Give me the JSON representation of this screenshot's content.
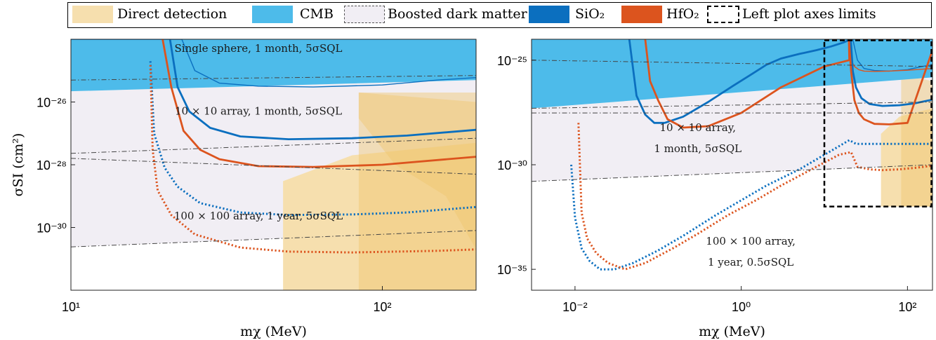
{
  "legend": {
    "items": [
      {
        "label": "Direct detection",
        "color": "#f6dfae",
        "style": "fill"
      },
      {
        "label": "CMB",
        "color": "#4dbbea",
        "style": "fill"
      },
      {
        "label": "Boosted dark matter",
        "color": "#555555",
        "style": "dashdot-box"
      },
      {
        "label": "SiO₂",
        "color": "#0b6fbf",
        "style": "fill"
      },
      {
        "label": "HfO₂",
        "color": "#dc541e",
        "style": "fill"
      },
      {
        "label": "Left plot axes limits",
        "color": "#000000",
        "style": "dashed-box"
      }
    ]
  },
  "colors": {
    "direct_detection": "#f6dfae",
    "direct_detection_dark": "#efc56f",
    "cmb": "#4dbbea",
    "boosted": "#f1eef4",
    "sio2": "#0b6fbf",
    "hfo2": "#dc541e"
  },
  "chart_data": [
    {
      "type": "line",
      "panel": "left",
      "xlabel": "mχ (MeV)",
      "ylabel": "σSI (cm²)",
      "xscale": "log",
      "yscale": "log",
      "xlim": [
        10,
        200
      ],
      "ylim": [
        1e-32,
        1e-24
      ],
      "xticks": [
        {
          "value": 10,
          "label": "10¹"
        },
        {
          "value": 100,
          "label": "10²"
        }
      ],
      "yticks": [
        {
          "value": 1e-26,
          "label": "10⁻²⁶"
        },
        {
          "value": 1e-28,
          "label": "10⁻²⁸"
        },
        {
          "value": 1e-30,
          "label": "10⁻³⁰"
        }
      ],
      "annotations": [
        {
          "text": "Single sphere, 1 month, 5σSQL",
          "x": 40,
          "y": 4e-25
        },
        {
          "text": "10 × 10 array, 1 month, 5σSQL",
          "x": 40,
          "y": 4e-27
        },
        {
          "text": "100 × 100 array, 1 year, 5σSQL",
          "x": 40,
          "y": 1.8e-30
        }
      ],
      "regions": {
        "cmb": [
          [
            10,
            2.2e-26
          ],
          [
            200,
            5e-26
          ]
        ],
        "boosted_upper": [
          [
            10,
            2.2e-26
          ],
          [
            200,
            5e-26
          ]
        ],
        "boosted_lower": [
          [
            10,
            2.4e-31
          ],
          [
            200,
            8e-31
          ]
        ],
        "direct_detection": [
          [
            [
              48,
              1e-32
            ],
            [
              48,
              3e-29
            ],
            [
              80,
              2e-28
            ],
            [
              200,
              5e-28
            ],
            [
              200,
              1e-32
            ]
          ],
          [
            [
              84,
              1e-32
            ],
            [
              84,
              2e-26
            ],
            [
              200,
              1e-26
            ],
            [
              200,
              1e-32
            ]
          ],
          [
            [
              200,
              2e-31
            ],
            [
              160,
              1e-29
            ],
            [
              110,
              1e-28
            ],
            [
              84,
              3e-27
            ],
            [
              84,
              2e-26
            ],
            [
              200,
              2e-26
            ]
          ]
        ]
      },
      "series": [
        {
          "name": "SiO₂",
          "material": "sio2",
          "style": "thin",
          "x": [
            10,
            22.7,
            25,
            30,
            40,
            60,
            100,
            150,
            200
          ],
          "y": [
            1e-24,
            1e-24,
            1e-25,
            4e-26,
            3.2e-26,
            3e-26,
            3.5e-26,
            5e-26,
            6e-26
          ]
        },
        {
          "name": "SiO₂",
          "material": "sio2",
          "style": "solid",
          "x": [
            20.8,
            22,
            24,
            28,
            35,
            50,
            80,
            120,
            200
          ],
          "y": [
            1e-24,
            3e-26,
            5e-27,
            1.5e-27,
            8e-28,
            6.5e-28,
            7e-28,
            8.5e-28,
            1.3e-27
          ]
        },
        {
          "name": "HfO₂",
          "material": "hfo2",
          "style": "solid",
          "x": [
            19.7,
            21,
            23,
            26,
            30,
            40,
            60,
            100,
            200
          ],
          "y": [
            1e-24,
            3e-26,
            1.2e-27,
            3e-28,
            1.5e-28,
            9e-29,
            8.5e-29,
            1e-28,
            1.8e-28
          ]
        },
        {
          "name": "SiO₂",
          "material": "sio2",
          "style": "dotted",
          "x": [
            18,
            18.5,
            20,
            22,
            26,
            35,
            50,
            80,
            120,
            200
          ],
          "y": [
            2e-25,
            1e-27,
            8e-29,
            2e-29,
            6e-30,
            3e-30,
            2.5e-30,
            2.6e-30,
            3e-30,
            4.5e-30
          ]
        },
        {
          "name": "HfO₂",
          "material": "hfo2",
          "style": "dotted",
          "x": [
            18,
            18.3,
            19,
            21,
            25,
            35,
            50,
            80,
            150,
            200
          ],
          "y": [
            1.5e-25,
            3e-28,
            1.5e-29,
            2.5e-30,
            6e-31,
            2.3e-31,
            1.7e-31,
            1.6e-31,
            1.8e-31,
            2e-31
          ]
        },
        {
          "name": "Boosted dark matter",
          "material": "boosted",
          "style": "dashdot",
          "x": [
            10,
            200
          ],
          "y": [
            5e-26,
            7e-26
          ]
        },
        {
          "name": "Boosted dark matter",
          "material": "boosted",
          "style": "dashdot",
          "x": [
            10,
            200
          ],
          "y": [
            2.3e-28,
            7e-28
          ]
        },
        {
          "name": "Boosted dark matter",
          "material": "boosted",
          "style": "dashdot",
          "x": [
            10,
            200
          ],
          "y": [
            1.6e-28,
            5e-29
          ]
        },
        {
          "name": "Boosted dark matter",
          "material": "boosted",
          "style": "dashdot",
          "x": [
            10,
            200
          ],
          "y": [
            2.4e-31,
            8e-31
          ]
        }
      ]
    },
    {
      "type": "line",
      "panel": "right",
      "xlabel": "mχ (MeV)",
      "ylabel": "",
      "xscale": "log",
      "yscale": "log",
      "xlim": [
        0.003,
        200
      ],
      "ylim": [
        1e-36,
        1e-24
      ],
      "xticks": [
        {
          "value": 0.01,
          "label": "10⁻²"
        },
        {
          "value": 1,
          "label": "10⁰"
        },
        {
          "value": 100,
          "label": "10²"
        }
      ],
      "yticks": [
        {
          "value": 1e-25,
          "label": "10⁻²⁵"
        },
        {
          "value": 1e-30,
          "label": "10⁻³⁰"
        },
        {
          "value": 1e-35,
          "label": "10⁻³⁵"
        }
      ],
      "annotations": [
        {
          "text": "10 × 10 array,",
          "x": 0.3,
          "y": 4e-29
        },
        {
          "text": "1 month, 5σSQL",
          "x": 0.3,
          "y": 4e-30
        },
        {
          "text": "100 × 100 array,",
          "x": 1.3,
          "y": 1.5e-34
        },
        {
          "text": "1 year, 0.5σSQL",
          "x": 1.3,
          "y": 1.5e-35
        }
      ],
      "limits_box": {
        "x": [
          10,
          200
        ],
        "y": [
          1e-32,
          1e-24
        ]
      },
      "regions": {
        "cmb": [
          [
            0.003,
            5e-28
          ],
          [
            200,
            1.5e-26
          ]
        ],
        "boosted_upper": [
          [
            0.003,
            5e-28
          ],
          [
            200,
            1.5e-26
          ]
        ],
        "boosted_lower": [
          [
            0.003,
            1.6e-31
          ],
          [
            200,
            1e-30
          ]
        ],
        "direct_detection": [
          [
            [
              48,
              1e-32
            ],
            [
              48,
              3e-29
            ],
            [
              80,
              2e-28
            ],
            [
              200,
              5e-28
            ],
            [
              200,
              1e-32
            ]
          ],
          [
            [
              84,
              1e-32
            ],
            [
              84,
              2e-26
            ],
            [
              200,
              1e-26
            ],
            [
              200,
              1e-32
            ]
          ]
        ]
      },
      "series": [
        {
          "name": "SiO₂",
          "material": "sio2",
          "style": "thin",
          "x": [
            20.5,
            22,
            25,
            30,
            40,
            60,
            100,
            150,
            200
          ],
          "y": [
            1e-24,
            1e-24,
            1e-25,
            4e-26,
            3.2e-26,
            3e-26,
            3.5e-26,
            5e-26,
            6e-26
          ]
        },
        {
          "name": "HfO₂",
          "material": "hfo2",
          "style": "thin",
          "x": [
            19.7,
            21,
            23,
            26,
            30,
            40,
            60,
            100,
            200
          ],
          "y": [
            1e-24,
            1e-25,
            5e-26,
            3.5e-26,
            3e-26,
            2.9e-26,
            3e-26,
            3.3e-26,
            4e-26
          ]
        },
        {
          "name": "SiO₂",
          "material": "sio2",
          "style": "solid",
          "x": [
            0.045,
            0.055,
            0.07,
            0.09,
            0.12,
            0.2,
            0.4,
            0.8,
            1.3,
            2,
            3,
            5,
            8,
            12,
            17,
            20.8,
            22,
            24,
            28,
            35,
            50,
            80,
            120,
            200
          ],
          "y": [
            1e-24,
            2e-27,
            2.5e-28,
            1e-28,
            1e-28,
            2e-28,
            1e-27,
            6e-27,
            2e-26,
            6e-26,
            1.2e-25,
            2e-25,
            3e-25,
            4.5e-25,
            7e-25,
            1e-24,
            3e-26,
            5e-27,
            1.5e-27,
            8e-28,
            6.5e-28,
            7e-28,
            8.5e-28,
            1.3e-27
          ]
        },
        {
          "name": "HfO₂",
          "material": "hfo2",
          "style": "solid",
          "x": [
            0.07,
            0.08,
            0.1,
            0.13,
            0.2,
            0.4,
            1,
            3,
            10,
            20,
            19.7,
            21,
            23,
            26,
            30,
            40,
            60,
            100,
            200
          ],
          "y": [
            1e-24,
            1e-26,
            1.2e-27,
            1.5e-28,
            6e-29,
            7e-29,
            3e-28,
            5e-27,
            5e-26,
            1e-25,
            1e-24,
            3e-26,
            1.2e-27,
            3e-28,
            1.5e-28,
            9e-29,
            8.5e-29,
            1e-28,
            3e-25
          ]
        },
        {
          "name": "SiO₂",
          "material": "sio2",
          "style": "dotted",
          "x": [
            0.009,
            0.01,
            0.012,
            0.015,
            0.02,
            0.03,
            0.05,
            0.1,
            0.2,
            0.5,
            1,
            2,
            5,
            10,
            20,
            24,
            28,
            35,
            50,
            80,
            120,
            200
          ],
          "y": [
            1e-30,
            3e-33,
            1e-34,
            2.5e-35,
            1e-35,
            1e-35,
            2e-35,
            8e-35,
            4e-34,
            4e-33,
            2e-32,
            1e-31,
            6e-31,
            3e-30,
            1.5e-29,
            1e-29,
            1e-29,
            1e-29,
            1e-29,
            1e-29,
            1e-29,
            1e-29
          ]
        },
        {
          "name": "HfO₂",
          "material": "hfo2",
          "style": "dotted",
          "x": [
            0.011,
            0.012,
            0.014,
            0.018,
            0.025,
            0.04,
            0.07,
            0.15,
            0.3,
            0.7,
            1.5,
            3,
            7,
            15,
            21,
            25,
            35,
            50,
            80,
            120,
            200
          ],
          "y": [
            1e-28,
            5e-33,
            3e-34,
            6e-35,
            2e-35,
            1e-35,
            2e-35,
            1e-34,
            5e-34,
            4e-33,
            2e-32,
            1e-31,
            6e-31,
            3e-30,
            4e-30,
            8e-31,
            6e-31,
            5.5e-31,
            6e-31,
            7e-31,
            9e-31
          ]
        },
        {
          "name": "Boosted dark matter",
          "material": "boosted",
          "style": "dashdot",
          "x": [
            0.003,
            200
          ],
          "y": [
            1e-25,
            5e-26
          ]
        },
        {
          "name": "Boosted dark matter",
          "material": "boosted",
          "style": "dashdot",
          "x": [
            0.003,
            200
          ],
          "y": [
            5e-28,
            1e-27
          ]
        },
        {
          "name": "Boosted dark matter",
          "material": "boosted",
          "style": "dashdot",
          "x": [
            0.003,
            200
          ],
          "y": [
            3e-28,
            3e-28
          ]
        },
        {
          "name": "Boosted dark matter",
          "material": "boosted",
          "style": "dashdot",
          "x": [
            0.003,
            200
          ],
          "y": [
            1.6e-31,
            1e-30
          ]
        }
      ]
    }
  ]
}
